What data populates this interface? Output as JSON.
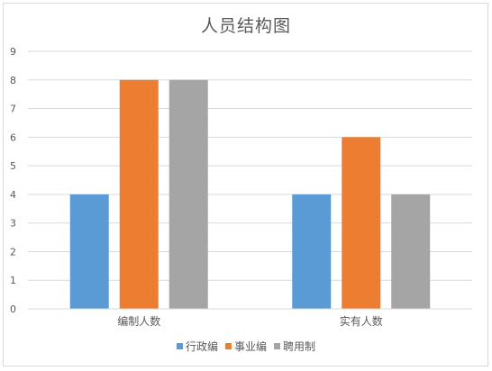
{
  "chart_data": {
    "type": "bar",
    "title": "人员结构图",
    "xlabel": "",
    "ylabel": "",
    "categories": [
      "编制人数",
      "实有人数"
    ],
    "series": [
      {
        "name": "行政编",
        "values": [
          4,
          4
        ],
        "color": "#5b9bd5"
      },
      {
        "name": "事业编",
        "values": [
          8,
          6
        ],
        "color": "#ed7d31"
      },
      {
        "name": "聘用制",
        "values": [
          8,
          4
        ],
        "color": "#a5a5a5"
      }
    ],
    "ylim": [
      0,
      9
    ],
    "yticks": [
      "0",
      "1",
      "2",
      "3",
      "4",
      "5",
      "6",
      "7",
      "8",
      "9"
    ],
    "grid": true,
    "legend_position": "bottom"
  }
}
